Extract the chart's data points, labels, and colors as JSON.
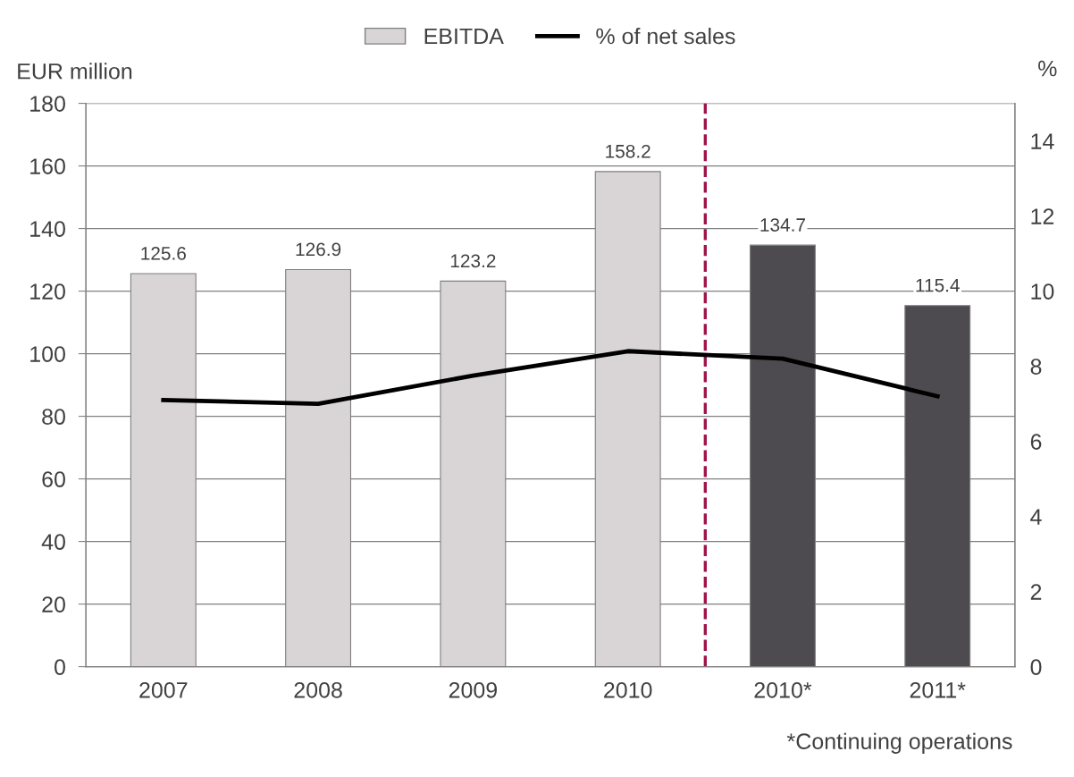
{
  "chart_data": {
    "type": "bar",
    "categories": [
      "2007",
      "2008",
      "2009",
      "2010",
      "2010*",
      "2011*"
    ],
    "series": [
      {
        "name": "EBITDA",
        "color": "#d9d5d6",
        "colors": [
          "#d9d5d6",
          "#d9d5d6",
          "#d9d5d6",
          "#d9d5d6",
          "#4d4b4f",
          "#4d4b4f"
        ],
        "values": [
          125.6,
          126.9,
          123.2,
          158.2,
          134.7,
          115.4
        ],
        "value_labels": [
          "125.6",
          "126.9",
          "123.2",
          "158.2",
          "134.7",
          "115.4"
        ]
      },
      {
        "name": "% of net sales",
        "type": "line",
        "axis": "y2",
        "color": "#000000",
        "values": [
          7.1,
          7.0,
          7.75,
          8.4,
          8.2,
          7.2
        ]
      }
    ],
    "ylabel": "EUR million",
    "y2label": "%",
    "ylim": [
      0,
      180
    ],
    "yticks": [
      0,
      20,
      40,
      60,
      80,
      100,
      120,
      140,
      160,
      180
    ],
    "y2lim": [
      0,
      15
    ],
    "y2ticks": [
      0,
      2,
      4,
      6,
      8,
      10,
      12,
      14
    ],
    "ref_lines": [
      {
        "axis": "x",
        "value": "2010*",
        "color": "#a0144a",
        "line_style": "dashed"
      }
    ],
    "annotations": [
      "*Continuing operations"
    ],
    "grid": "y",
    "legend": "top",
    "marker": "none",
    "line_style": "solid"
  }
}
